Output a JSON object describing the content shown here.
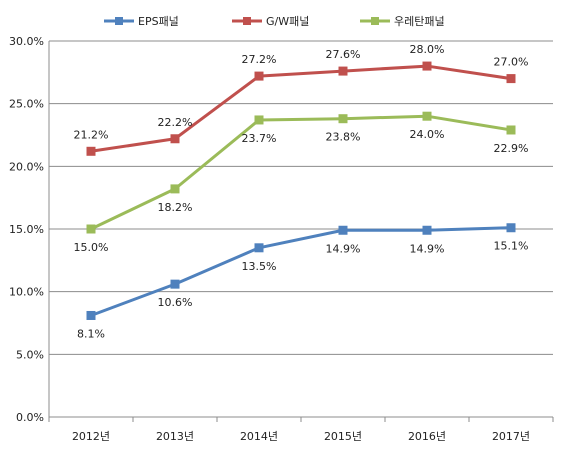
{
  "chart_data": {
    "type": "line",
    "categories": [
      "2012년",
      "2013년",
      "2014년",
      "2015년",
      "2016년",
      "2017년"
    ],
    "series": [
      {
        "name": "EPS패널",
        "values": [
          8.1,
          10.6,
          13.5,
          14.9,
          14.9,
          15.1
        ],
        "labels": [
          "8.1%",
          "10.6%",
          "13.5%",
          "14.9%",
          "14.9%",
          "15.1%"
        ],
        "color": "#4F81BD"
      },
      {
        "name": "G/W패널",
        "values": [
          21.2,
          22.2,
          27.2,
          27.6,
          28.0,
          27.0
        ],
        "labels": [
          "21.2%",
          "22.2%",
          "27.2%",
          "27.6%",
          "28.0%",
          "27.0%"
        ],
        "color": "#C0504D"
      },
      {
        "name": "우레탄패널",
        "values": [
          15.0,
          18.2,
          23.7,
          23.8,
          24.0,
          22.9
        ],
        "labels": [
          "15.0%",
          "18.2%",
          "23.7%",
          "23.8%",
          "24.0%",
          "22.9%"
        ],
        "color": "#9BBB59"
      }
    ],
    "yticks": [
      "0.0%",
      "5.0%",
      "10.0%",
      "15.0%",
      "20.0%",
      "25.0%",
      "30.0%"
    ],
    "ylim": [
      0,
      30
    ],
    "grid": true,
    "legend": "top"
  }
}
